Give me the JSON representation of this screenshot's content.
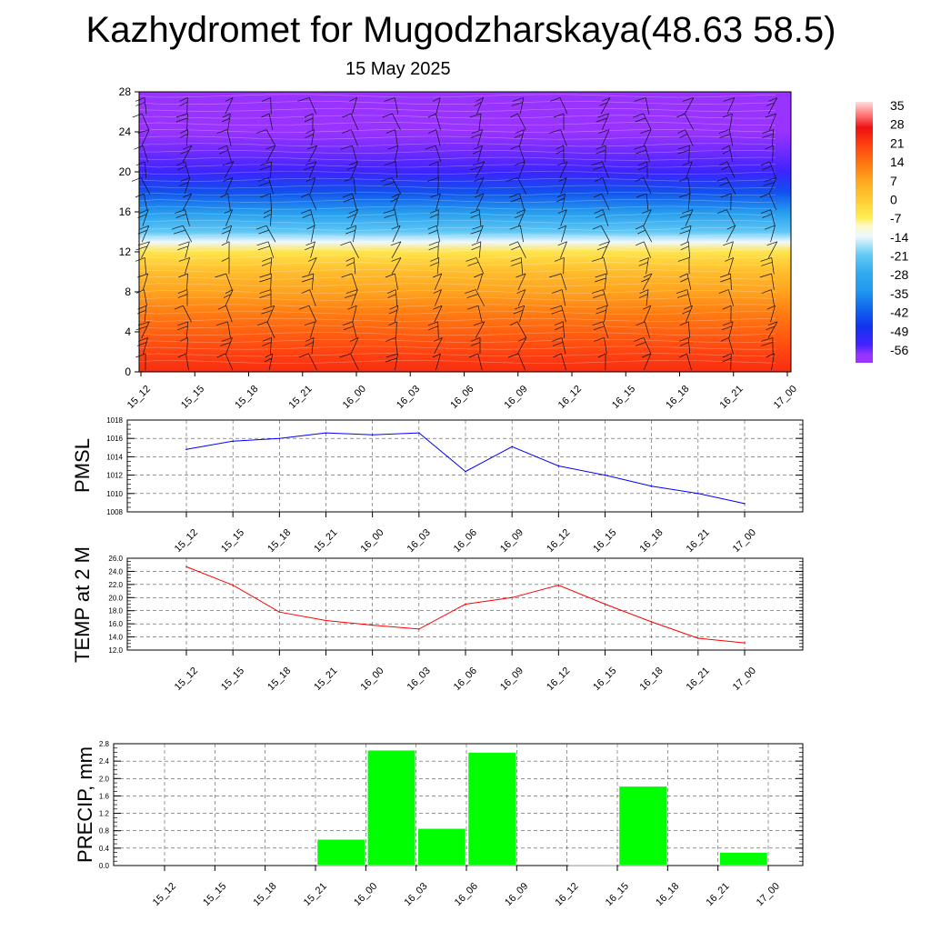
{
  "title": "Kazhydromet for Mugodzharskaya(48.63 58.5)",
  "subtitle": "15 May 2025",
  "chart_data": [
    {
      "type": "heatmap",
      "x": [
        "15_12",
        "15_15",
        "15_18",
        "15_21",
        "16_00",
        "16_03",
        "16_06",
        "16_09",
        "16_12",
        "16_15",
        "16_18",
        "16_21",
        "17_00"
      ],
      "y_ticks": [
        0,
        4,
        8,
        12,
        16,
        20,
        24,
        28
      ],
      "ylim": [
        0,
        28
      ],
      "colorbar_labels": [
        35,
        28,
        21,
        14,
        7,
        0,
        -7,
        -14,
        -21,
        -28,
        -35,
        -42,
        -49,
        -56
      ],
      "colorbar_range": [
        -63,
        38
      ],
      "temperature_profile": [
        {
          "level": 0,
          "value": 24
        },
        {
          "level": 2,
          "value": 21
        },
        {
          "level": 4,
          "value": 17
        },
        {
          "level": 6,
          "value": 13
        },
        {
          "level": 8,
          "value": 8
        },
        {
          "level": 10,
          "value": 3
        },
        {
          "level": 12,
          "value": -5
        },
        {
          "level": 13,
          "value": -14
        },
        {
          "level": 14,
          "value": -22
        },
        {
          "level": 16,
          "value": -34
        },
        {
          "level": 18,
          "value": -45
        },
        {
          "level": 20,
          "value": -55
        },
        {
          "level": 22,
          "value": -58
        },
        {
          "level": 24,
          "value": -62
        },
        {
          "level": 26,
          "value": -63
        },
        {
          "level": 28,
          "value": -63
        }
      ]
    },
    {
      "type": "line",
      "ylabel": "PMSL",
      "x": [
        "15_12",
        "15_15",
        "15_18",
        "15_21",
        "16_00",
        "16_03",
        "16_06",
        "16_09",
        "16_12",
        "16_15",
        "16_18",
        "16_21",
        "17_00"
      ],
      "values": [
        1014.8,
        1015.7,
        1016.0,
        1016.6,
        1016.4,
        1016.6,
        1012.4,
        1015.1,
        1013.0,
        1012.0,
        1010.8,
        1010.0,
        1008.9
      ],
      "ylim": [
        1008,
        1018
      ],
      "y_ticks": [
        "1008",
        "1010",
        "1012",
        "1014",
        "1016",
        "1018"
      ],
      "color": "#0000ff"
    },
    {
      "type": "line",
      "ylabel": "TEMP at 2 M",
      "x": [
        "15_12",
        "15_15",
        "15_18",
        "15_21",
        "16_00",
        "16_03",
        "16_06",
        "16_09",
        "16_12",
        "16_15",
        "16_18",
        "16_21",
        "17_00"
      ],
      "values": [
        24.7,
        21.9,
        17.8,
        16.5,
        15.8,
        15.2,
        19.0,
        20.0,
        21.9,
        19.0,
        16.3,
        13.8,
        13.1
      ],
      "ylim": [
        12,
        26
      ],
      "y_ticks": [
        "12.0",
        "14.0",
        "16.0",
        "18.0",
        "20.0",
        "22.0",
        "24.0",
        "26.0"
      ],
      "color": "#ff0000"
    },
    {
      "type": "bar",
      "ylabel": "PRECIP, mm",
      "categories": [
        "15_12",
        "15_15",
        "15_18",
        "15_21",
        "16_00",
        "16_03",
        "16_06",
        "16_09",
        "16_12",
        "16_15",
        "16_18",
        "16_21",
        "17_00"
      ],
      "values": [
        0,
        0,
        0,
        0,
        0.6,
        2.65,
        0.85,
        2.6,
        0,
        0.02,
        1.82,
        0,
        0.3
      ],
      "ylim": [
        0,
        2.8
      ],
      "y_ticks": [
        "0.0",
        "0.4",
        "0.8",
        "1.2",
        "1.6",
        "2.0",
        "2.4",
        "2.8"
      ],
      "color": "#00ff00"
    }
  ]
}
